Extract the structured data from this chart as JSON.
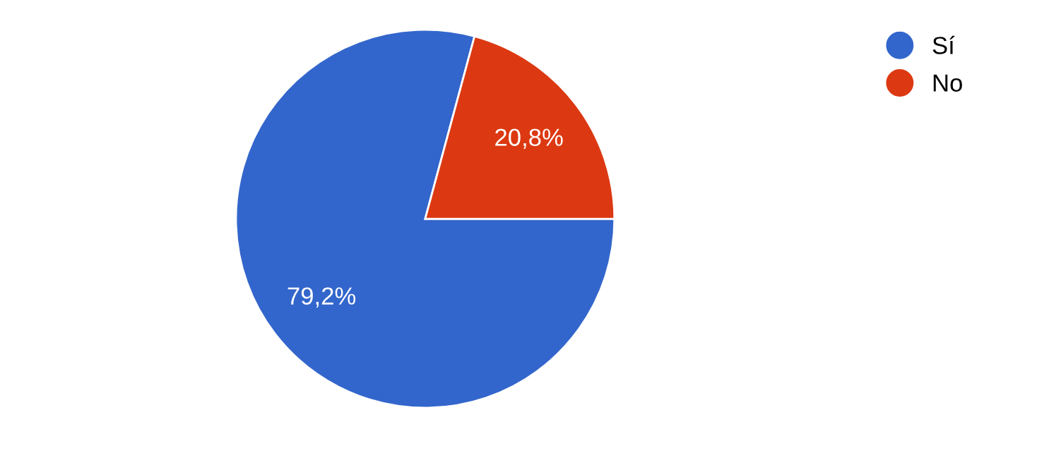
{
  "chart_data": {
    "type": "pie",
    "categories": [
      "Sí",
      "No"
    ],
    "values": [
      79.2,
      20.8
    ],
    "colors": [
      "#3366cc",
      "#dc3912"
    ],
    "value_labels": [
      "79,2%",
      "20,8%"
    ],
    "legend": "top right"
  }
}
